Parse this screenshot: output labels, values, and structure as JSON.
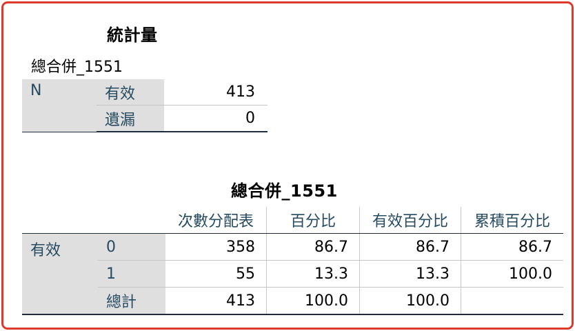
{
  "stats": {
    "title": "統計量",
    "variable": "總合併_1551",
    "row_group": "N",
    "rows": [
      {
        "label": "有效",
        "value": "413"
      },
      {
        "label": "遺漏",
        "value": "0"
      }
    ]
  },
  "freq": {
    "title": "總合併_1551",
    "columns": [
      "次數分配表",
      "百分比",
      "有效百分比",
      "累積百分比"
    ],
    "row_group": "有效",
    "rows": [
      {
        "label": "0",
        "values": [
          "358",
          "86.7",
          "86.7",
          "86.7"
        ]
      },
      {
        "label": "1",
        "values": [
          "55",
          "13.3",
          "13.3",
          "100.0"
        ]
      },
      {
        "label": "總計",
        "values": [
          "413",
          "100.0",
          "100.0",
          ""
        ]
      }
    ]
  },
  "colors": {
    "frame_border": "#e0392b",
    "header_text": "#264a60",
    "rowhead_bg": "#dfdfdf"
  }
}
